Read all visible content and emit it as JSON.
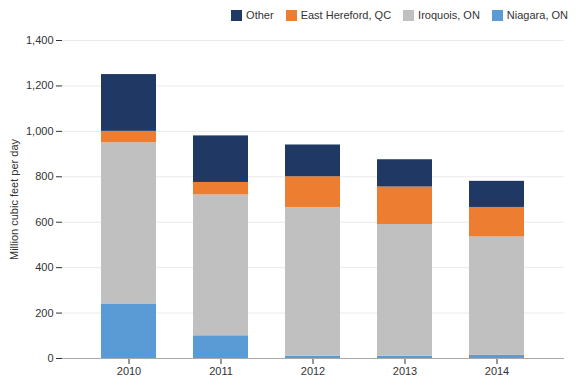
{
  "chart_data": {
    "type": "bar",
    "stacked": true,
    "categories": [
      "2010",
      "2011",
      "2012",
      "2013",
      "2014"
    ],
    "series": [
      {
        "name": "Niagara, ON",
        "color": "#5b9bd5",
        "values": [
          240,
          100,
          10,
          10,
          15
        ]
      },
      {
        "name": "Iroquois, ON",
        "color": "#c0c0c0",
        "values": [
          710,
          620,
          655,
          580,
          520
        ]
      },
      {
        "name": "East Hereford, QC",
        "color": "#ed7d31",
        "values": [
          50,
          55,
          135,
          165,
          130
        ]
      },
      {
        "name": "Other",
        "color": "#1f3864",
        "values": [
          250,
          205,
          140,
          120,
          115
        ]
      }
    ],
    "ylabel": "Million cubic feet per day",
    "ylim": [
      0,
      1400
    ],
    "yticks": [
      0,
      200,
      400,
      600,
      800,
      {
        "value": 1000,
        "label": "1,000"
      },
      {
        "value": 1200,
        "label": "1,200"
      },
      {
        "value": 1400,
        "label": "1,400"
      }
    ],
    "grid": true,
    "legend": "upper right"
  }
}
